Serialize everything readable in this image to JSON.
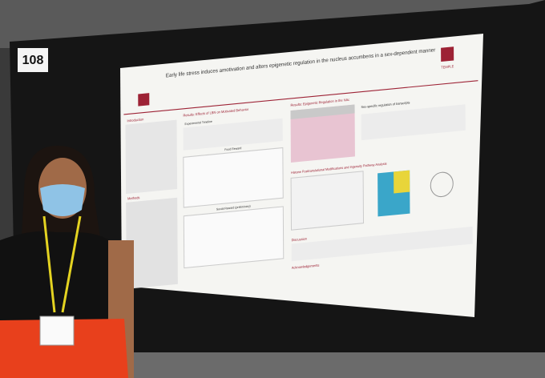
{
  "booth_number": "108",
  "poster": {
    "title": "Early life stress induces amotivation and alters epigenetic regulation in the nucleus accumbens in a sex-dependent manner",
    "institution": "TEMPLE",
    "sections": [
      "Introduction",
      "Methods",
      "Results: Effects of LBN on Motivated Behavior",
      "Experimental Timeline",
      "Food Reward",
      "Social Reward (preliminary)",
      "Results: Epigenetic Regulation in the NAc",
      "Sex-specific regulation of transcripts",
      "Histone Posttranslational Modifications and Ingenuity Pathway Analysis",
      "Discussion",
      "Acknowledgements"
    ]
  }
}
